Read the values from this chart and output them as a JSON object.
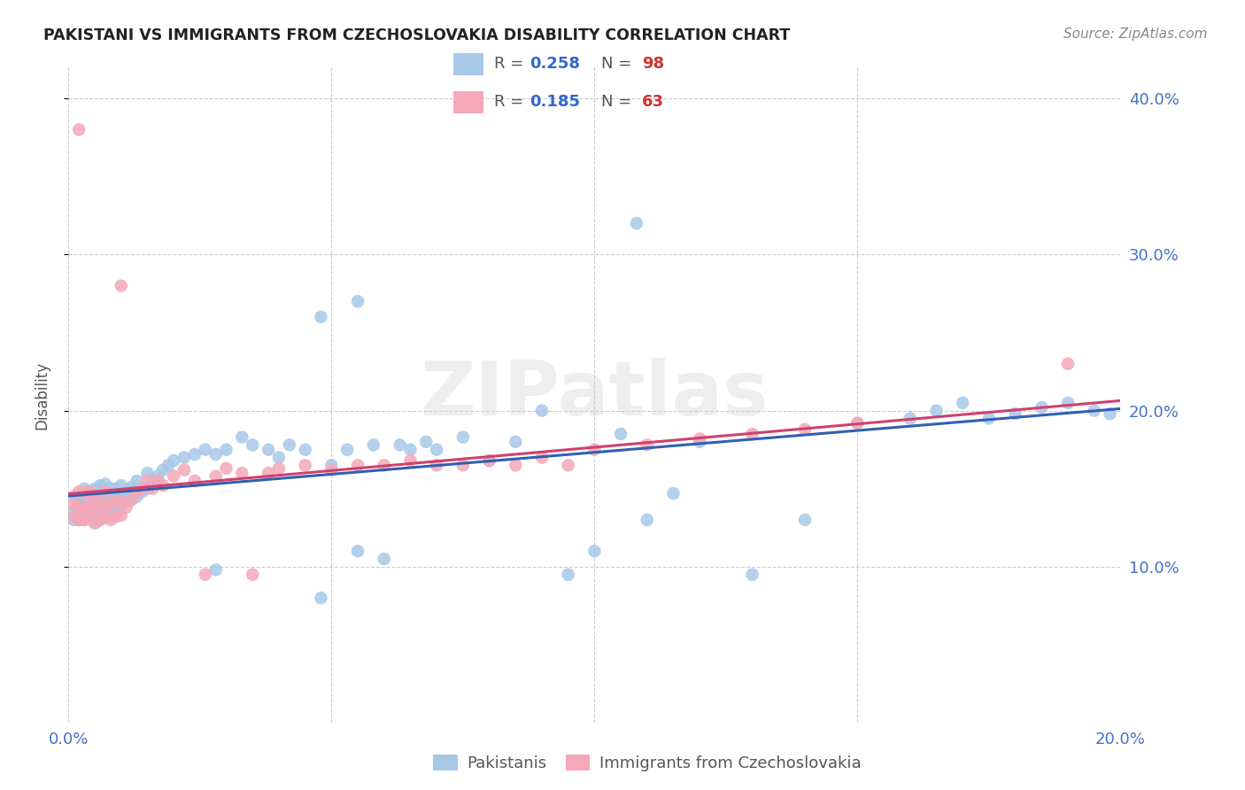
{
  "title": "PAKISTANI VS IMMIGRANTS FROM CZECHOSLOVAKIA DISABILITY CORRELATION CHART",
  "source": "Source: ZipAtlas.com",
  "ylabel": "Disability",
  "xlim": [
    0.0,
    0.2
  ],
  "ylim": [
    0.0,
    0.42
  ],
  "x_ticks": [
    0.0,
    0.05,
    0.1,
    0.15,
    0.2
  ],
  "x_tick_labels": [
    "0.0%",
    "",
    "",
    "",
    "20.0%"
  ],
  "y_ticks": [
    0.1,
    0.2,
    0.3,
    0.4
  ],
  "y_tick_labels": [
    "10.0%",
    "20.0%",
    "30.0%",
    "40.0%"
  ],
  "blue_R": 0.258,
  "blue_N": 98,
  "pink_R": 0.185,
  "pink_N": 63,
  "blue_color": "#a8c8e8",
  "pink_color": "#f4a8b8",
  "blue_line_color": "#3060b0",
  "pink_line_color": "#d04070",
  "legend_label_blue": "Pakistanis",
  "legend_label_pink": "Immigrants from Czechoslovakia",
  "watermark": "ZIPatlas",
  "blue_x": [
    0.001,
    0.001,
    0.001,
    0.002,
    0.002,
    0.002,
    0.002,
    0.003,
    0.003,
    0.003,
    0.003,
    0.003,
    0.004,
    0.004,
    0.004,
    0.004,
    0.005,
    0.005,
    0.005,
    0.005,
    0.006,
    0.006,
    0.006,
    0.006,
    0.007,
    0.007,
    0.007,
    0.007,
    0.008,
    0.008,
    0.008,
    0.009,
    0.009,
    0.009,
    0.01,
    0.01,
    0.01,
    0.011,
    0.011,
    0.012,
    0.012,
    0.013,
    0.013,
    0.014,
    0.015,
    0.015,
    0.016,
    0.017,
    0.018,
    0.019,
    0.02,
    0.022,
    0.024,
    0.026,
    0.028,
    0.03,
    0.033,
    0.035,
    0.038,
    0.04,
    0.042,
    0.045,
    0.048,
    0.05,
    0.053,
    0.055,
    0.058,
    0.06,
    0.063,
    0.065,
    0.068,
    0.07,
    0.075,
    0.08,
    0.085,
    0.09,
    0.095,
    0.1,
    0.105,
    0.11,
    0.115,
    0.12,
    0.13,
    0.14,
    0.15,
    0.16,
    0.165,
    0.17,
    0.175,
    0.18,
    0.185,
    0.19,
    0.195,
    0.198,
    0.028,
    0.048,
    0.055,
    0.108
  ],
  "blue_y": [
    0.135,
    0.145,
    0.13,
    0.135,
    0.145,
    0.13,
    0.14,
    0.133,
    0.142,
    0.138,
    0.13,
    0.15,
    0.132,
    0.14,
    0.148,
    0.135,
    0.128,
    0.136,
    0.142,
    0.15,
    0.13,
    0.138,
    0.145,
    0.152,
    0.132,
    0.139,
    0.146,
    0.153,
    0.135,
    0.142,
    0.15,
    0.136,
    0.143,
    0.15,
    0.138,
    0.145,
    0.152,
    0.142,
    0.149,
    0.143,
    0.151,
    0.145,
    0.155,
    0.148,
    0.15,
    0.16,
    0.155,
    0.158,
    0.162,
    0.165,
    0.168,
    0.17,
    0.172,
    0.175,
    0.172,
    0.175,
    0.183,
    0.178,
    0.175,
    0.17,
    0.178,
    0.175,
    0.26,
    0.165,
    0.175,
    0.11,
    0.178,
    0.105,
    0.178,
    0.175,
    0.18,
    0.175,
    0.183,
    0.168,
    0.18,
    0.2,
    0.095,
    0.11,
    0.185,
    0.13,
    0.147,
    0.18,
    0.095,
    0.13,
    0.192,
    0.195,
    0.2,
    0.205,
    0.195,
    0.198,
    0.202,
    0.205,
    0.2,
    0.198,
    0.098,
    0.08,
    0.27,
    0.32
  ],
  "pink_x": [
    0.001,
    0.001,
    0.002,
    0.002,
    0.002,
    0.003,
    0.003,
    0.003,
    0.004,
    0.004,
    0.004,
    0.005,
    0.005,
    0.005,
    0.006,
    0.006,
    0.007,
    0.007,
    0.007,
    0.008,
    0.008,
    0.009,
    0.009,
    0.01,
    0.01,
    0.011,
    0.012,
    0.013,
    0.014,
    0.015,
    0.016,
    0.017,
    0.018,
    0.02,
    0.022,
    0.024,
    0.026,
    0.028,
    0.03,
    0.033,
    0.035,
    0.038,
    0.04,
    0.045,
    0.05,
    0.055,
    0.06,
    0.065,
    0.07,
    0.075,
    0.08,
    0.085,
    0.09,
    0.095,
    0.1,
    0.11,
    0.12,
    0.13,
    0.14,
    0.15,
    0.002,
    0.19,
    0.01
  ],
  "pink_y": [
    0.132,
    0.14,
    0.13,
    0.138,
    0.148,
    0.13,
    0.138,
    0.148,
    0.133,
    0.14,
    0.148,
    0.128,
    0.136,
    0.145,
    0.13,
    0.14,
    0.132,
    0.139,
    0.148,
    0.13,
    0.14,
    0.132,
    0.142,
    0.133,
    0.142,
    0.138,
    0.143,
    0.148,
    0.15,
    0.155,
    0.15,
    0.155,
    0.152,
    0.158,
    0.162,
    0.155,
    0.095,
    0.158,
    0.163,
    0.16,
    0.095,
    0.16,
    0.163,
    0.165,
    0.162,
    0.165,
    0.165,
    0.168,
    0.165,
    0.165,
    0.168,
    0.165,
    0.17,
    0.165,
    0.175,
    0.178,
    0.182,
    0.185,
    0.188,
    0.192,
    0.38,
    0.23,
    0.28
  ]
}
